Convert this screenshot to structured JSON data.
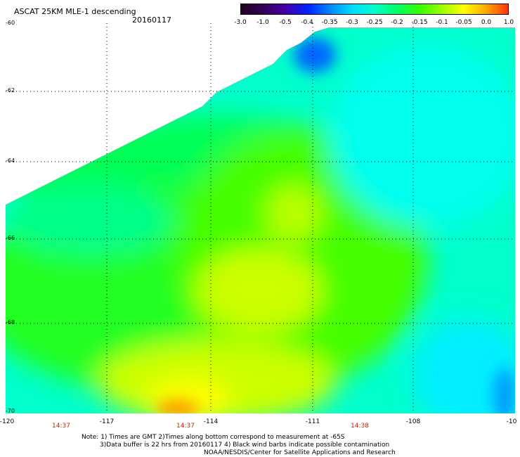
{
  "header": {
    "title": "ASCAT 25KM MLE-1 descending",
    "date": "20160117"
  },
  "colorbar": {
    "labels": [
      "-3.0",
      "-1.0",
      "-0.5",
      "-0.4",
      "-0.35",
      "-0.3",
      "-0.25",
      "-0.2",
      "-0.15",
      "-0.1",
      "-0.05",
      "0.0",
      "1.0"
    ],
    "colors": [
      "#220022",
      "#330055",
      "#4400aa",
      "#0022ff",
      "#0088ff",
      "#00ddff",
      "#00ffcc",
      "#00ff66",
      "#33ff00",
      "#99ff00",
      "#ffff00",
      "#ffaa00",
      "#ff3300"
    ]
  },
  "axes": {
    "lat_labels": [
      "-60",
      "-62",
      "-64",
      "-66",
      "-68",
      "-70"
    ],
    "lon_labels": [
      "-120",
      "-117",
      "-114",
      "-111",
      "-108",
      "-10"
    ]
  },
  "times": [
    "14:37",
    "14:37",
    "14:38"
  ],
  "notes": {
    "line1": "Note: 1) Times are GMT 2)Times along bottom correspond to measurement at -65S",
    "line2": "3)Data buffer is 22 hrs from 20160117 4) Black wind barbs indicate possible contamination",
    "line3": "NOAA/NESDIS/Center for Satellite Applications and Research"
  }
}
